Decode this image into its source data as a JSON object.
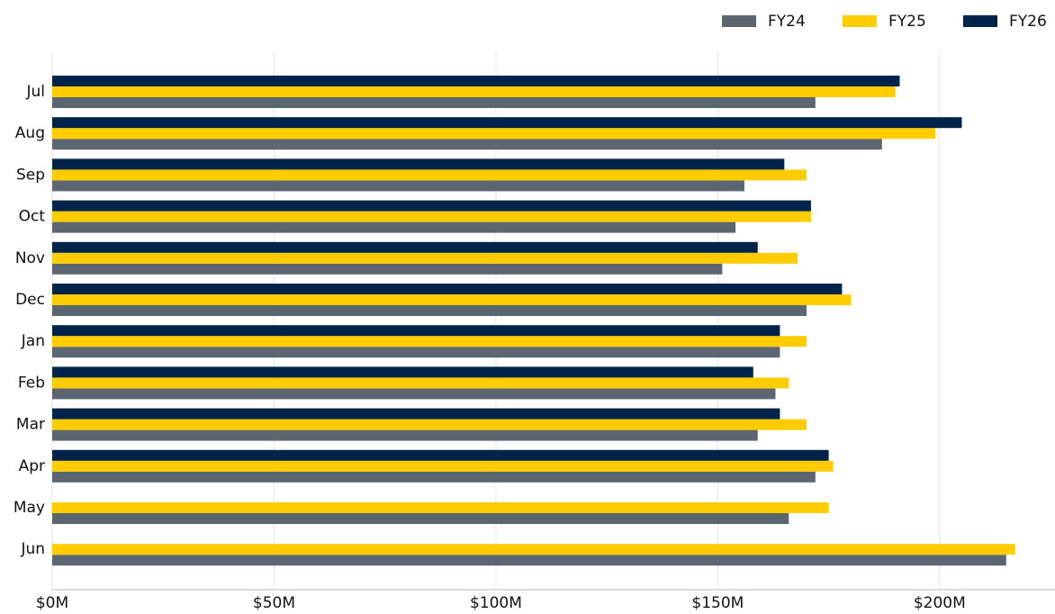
{
  "chart_data": {
    "type": "barh",
    "categories": [
      "Jul",
      "Aug",
      "Sep",
      "Oct",
      "Nov",
      "Dec",
      "Jan",
      "Feb",
      "Mar",
      "Apr",
      "May",
      "Jun"
    ],
    "series": [
      {
        "name": "FY24",
        "color": "#5b6670",
        "values": [
          172,
          187,
          156,
          154,
          151,
          170,
          164,
          163,
          159,
          172,
          166,
          215
        ]
      },
      {
        "name": "FY25",
        "color": "#ffcc00",
        "values": [
          190,
          199,
          170,
          171,
          168,
          180,
          170,
          166,
          170,
          176,
          175,
          217
        ]
      },
      {
        "name": "FY26",
        "color": "#00234a",
        "values": [
          191,
          205,
          165,
          171,
          159,
          178,
          164,
          158,
          164,
          175,
          null,
          null
        ]
      }
    ],
    "xlim": [
      0,
      226
    ],
    "xticks": [
      {
        "value": 0,
        "label": "$0M"
      },
      {
        "value": 50,
        "label": "$50M"
      },
      {
        "value": 100,
        "label": "$100M"
      },
      {
        "value": 150,
        "label": "$150M"
      },
      {
        "value": 200,
        "label": "$200M"
      }
    ],
    "grid": true,
    "legend": "top-right"
  }
}
